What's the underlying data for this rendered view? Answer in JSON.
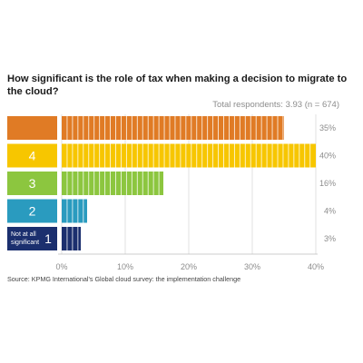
{
  "chart_data": {
    "type": "bar",
    "orientation": "horizontal",
    "title": "How significant is the role of tax when making a decision to migrate to the cloud?",
    "subtitle": "Total respondents: 3.93 (n = 674)",
    "source": "Source: KPMG International's Global cloud survey: the implementation challenge",
    "categories": [
      {
        "label": "",
        "number": "",
        "color": "#E07B25"
      },
      {
        "label": "",
        "number": "4",
        "color": "#F7C600"
      },
      {
        "label": "",
        "number": "3",
        "color": "#8CC63F"
      },
      {
        "label": "",
        "number": "2",
        "color": "#2A9BBF"
      },
      {
        "label": "Not at all significant",
        "number": "1",
        "color": "#1B2F6E"
      }
    ],
    "values": [
      35,
      40,
      16,
      4,
      3
    ],
    "value_labels": [
      "35%",
      "40%",
      "16%",
      "4%",
      "3%"
    ],
    "xlim": [
      0,
      40
    ],
    "xticks": [
      0,
      10,
      20,
      30,
      40
    ],
    "xtick_labels": [
      "0%",
      "10%",
      "20%",
      "30%",
      "40%"
    ],
    "grid": true,
    "xlabel": "",
    "ylabel": ""
  }
}
